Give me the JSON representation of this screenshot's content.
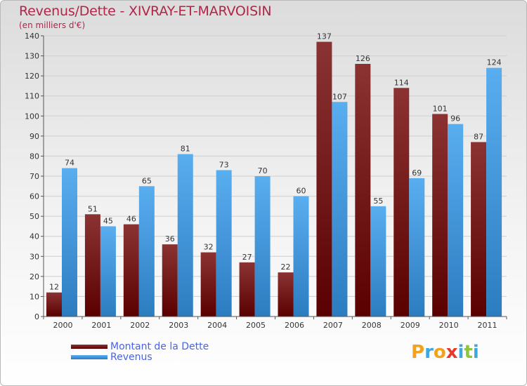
{
  "title": "Revenus/Dette - XIVRAY-ET-MARVOISIN",
  "subtitle": "(en milliers d'€)",
  "colors": {
    "dette_top": "#8b3333",
    "dette_bottom": "#5a0000",
    "revenus_top": "#59aef0",
    "revenus_bottom": "#2c7cc0",
    "title": "#b2254a",
    "legend_text": "#4a63e6",
    "grid": "#cfcfcf"
  },
  "logo": {
    "text": "Proxiti",
    "letters": [
      "P",
      "r",
      "o",
      "x",
      "i",
      "t",
      "i"
    ]
  },
  "chart_data": {
    "type": "bar",
    "categories": [
      "2000",
      "2001",
      "2002",
      "2003",
      "2004",
      "2005",
      "2006",
      "2007",
      "2008",
      "2009",
      "2010",
      "2011"
    ],
    "series": [
      {
        "name": "Montant de la Dette",
        "values": [
          12,
          51,
          46,
          36,
          32,
          27,
          22,
          137,
          126,
          114,
          101,
          87
        ]
      },
      {
        "name": "Revenus",
        "values": [
          74,
          45,
          65,
          81,
          73,
          70,
          60,
          107,
          55,
          69,
          96,
          124
        ]
      }
    ],
    "ylim": [
      0,
      140
    ],
    "ytick_step": 10,
    "grid": true,
    "legend": "bottom-left",
    "data_labels": true
  }
}
